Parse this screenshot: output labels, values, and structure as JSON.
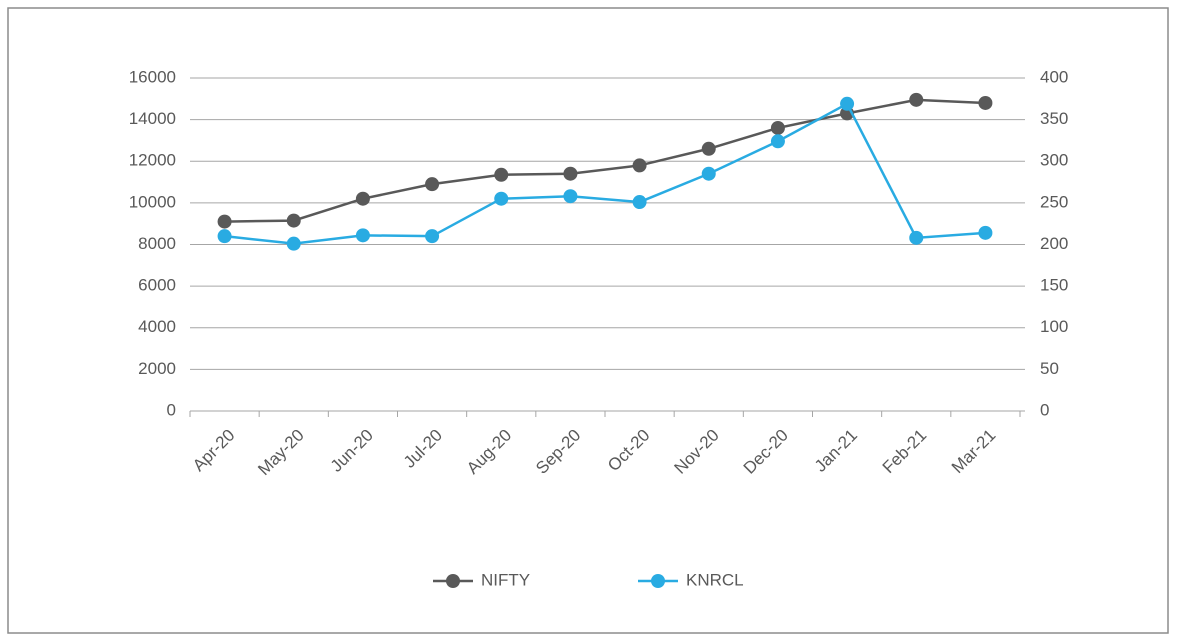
{
  "chart_data": {
    "type": "line",
    "categories": [
      "Apr-20",
      "May-20",
      "Jun-20",
      "Jul-20",
      "Aug-20",
      "Sep-20",
      "Oct-20",
      "Nov-20",
      "Dec-20",
      "Jan-21",
      "Feb-21",
      "Mar-21"
    ],
    "series": [
      {
        "name": "NIFTY",
        "color": "#595959",
        "values": [
          9100,
          9150,
          10200,
          10900,
          11350,
          11400,
          11800,
          12600,
          13600,
          14300,
          14950,
          14800
        ]
      },
      {
        "name": "KNRCL",
        "color": "#29abe2",
        "axis": "y2",
        "values": [
          210,
          201,
          211,
          210,
          255,
          258,
          251,
          285,
          324,
          369,
          208,
          214
        ]
      }
    ],
    "ylim": [
      0,
      16000
    ],
    "yticks": [
      0,
      2000,
      4000,
      6000,
      8000,
      10000,
      12000,
      14000,
      16000
    ],
    "y2lim": [
      0,
      400
    ],
    "y2ticks": [
      0,
      50,
      100,
      150,
      200,
      250,
      300,
      350,
      400
    ],
    "grid": true,
    "legend": "bottom"
  }
}
